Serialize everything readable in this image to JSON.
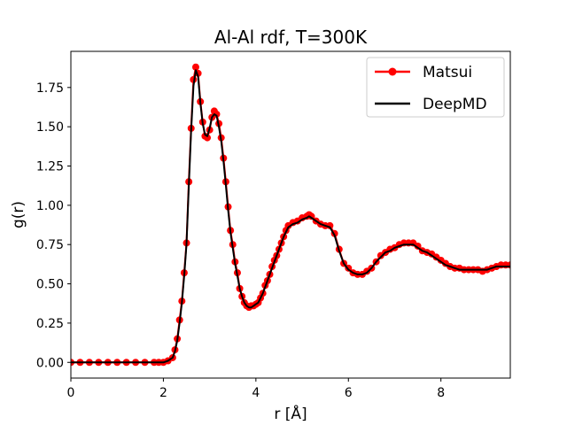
{
  "chart_data": {
    "type": "line",
    "title": "Al-Al rdf, T=300K",
    "xlabel": "r [Å]",
    "ylabel": "g(r)",
    "xlim": [
      0,
      9.5
    ],
    "ylim": [
      -0.1,
      1.98
    ],
    "xticks": [
      0,
      2,
      4,
      6,
      8
    ],
    "xtick_labels": [
      "0",
      "2",
      "4",
      "6",
      "8"
    ],
    "yticks": [
      0.0,
      0.25,
      0.5,
      0.75,
      1.0,
      1.25,
      1.5,
      1.75
    ],
    "ytick_labels": [
      "0.00",
      "0.25",
      "0.50",
      "0.75",
      "1.00",
      "1.25",
      "1.50",
      "1.75"
    ],
    "grid": false,
    "legend_position": "top-right",
    "curve_x": [
      0,
      0.2,
      0.4,
      0.6,
      0.8,
      1.0,
      1.2,
      1.4,
      1.6,
      1.8,
      1.9,
      2.0,
      2.1,
      2.2,
      2.25,
      2.3,
      2.35,
      2.4,
      2.45,
      2.5,
      2.55,
      2.6,
      2.65,
      2.7,
      2.75,
      2.8,
      2.85,
      2.9,
      2.95,
      3.0,
      3.05,
      3.1,
      3.15,
      3.2,
      3.25,
      3.3,
      3.35,
      3.4,
      3.45,
      3.5,
      3.55,
      3.6,
      3.65,
      3.7,
      3.75,
      3.8,
      3.85,
      3.9,
      3.95,
      4.0,
      4.05,
      4.1,
      4.15,
      4.2,
      4.25,
      4.3,
      4.35,
      4.4,
      4.45,
      4.5,
      4.55,
      4.6,
      4.65,
      4.7,
      4.8,
      4.9,
      5.0,
      5.1,
      5.15,
      5.2,
      5.3,
      5.4,
      5.5,
      5.6,
      5.7,
      5.8,
      5.9,
      6.0,
      6.1,
      6.2,
      6.3,
      6.4,
      6.5,
      6.6,
      6.7,
      6.8,
      6.9,
      7.0,
      7.1,
      7.2,
      7.3,
      7.4,
      7.5,
      7.6,
      7.7,
      7.8,
      7.9,
      8.0,
      8.1,
      8.2,
      8.3,
      8.4,
      8.5,
      8.6,
      8.7,
      8.8,
      8.9,
      9.0,
      9.1,
      9.2,
      9.3,
      9.4,
      9.5
    ],
    "series": [
      {
        "name": "Matsui",
        "color": "#ff0000",
        "values": [
          0.0,
          0.0,
          0.0,
          0.0,
          0.0,
          0.0,
          0.0,
          0.0,
          0.0,
          0.0,
          0.0,
          0.0,
          0.01,
          0.03,
          0.08,
          0.15,
          0.27,
          0.39,
          0.57,
          0.76,
          1.15,
          1.49,
          1.8,
          1.88,
          1.84,
          1.66,
          1.53,
          1.44,
          1.43,
          1.48,
          1.56,
          1.6,
          1.58,
          1.52,
          1.43,
          1.3,
          1.15,
          0.99,
          0.84,
          0.75,
          0.64,
          0.57,
          0.47,
          0.42,
          0.38,
          0.36,
          0.35,
          0.36,
          0.36,
          0.37,
          0.38,
          0.41,
          0.44,
          0.49,
          0.52,
          0.56,
          0.61,
          0.65,
          0.68,
          0.72,
          0.76,
          0.8,
          0.84,
          0.87,
          0.89,
          0.9,
          0.92,
          0.93,
          0.94,
          0.93,
          0.9,
          0.88,
          0.87,
          0.87,
          0.82,
          0.72,
          0.63,
          0.6,
          0.57,
          0.56,
          0.56,
          0.58,
          0.6,
          0.64,
          0.68,
          0.7,
          0.72,
          0.73,
          0.75,
          0.76,
          0.76,
          0.76,
          0.74,
          0.71,
          0.7,
          0.69,
          0.67,
          0.65,
          0.63,
          0.61,
          0.6,
          0.6,
          0.59,
          0.59,
          0.59,
          0.59,
          0.58,
          0.59,
          0.6,
          0.61,
          0.62,
          0.62,
          0.62
        ]
      },
      {
        "name": "DeepMD",
        "color": "#000000",
        "values": [
          0.0,
          0.0,
          0.0,
          0.0,
          0.0,
          0.0,
          0.0,
          0.0,
          0.0,
          0.0,
          0.0,
          0.0,
          0.01,
          0.03,
          0.07,
          0.14,
          0.25,
          0.38,
          0.55,
          0.75,
          1.12,
          1.47,
          1.76,
          1.86,
          1.82,
          1.65,
          1.52,
          1.45,
          1.44,
          1.49,
          1.56,
          1.58,
          1.57,
          1.5,
          1.41,
          1.28,
          1.13,
          0.97,
          0.83,
          0.73,
          0.63,
          0.55,
          0.47,
          0.42,
          0.38,
          0.36,
          0.35,
          0.35,
          0.36,
          0.37,
          0.38,
          0.41,
          0.44,
          0.48,
          0.52,
          0.56,
          0.6,
          0.64,
          0.68,
          0.72,
          0.76,
          0.8,
          0.83,
          0.86,
          0.88,
          0.89,
          0.91,
          0.92,
          0.93,
          0.92,
          0.9,
          0.88,
          0.87,
          0.86,
          0.81,
          0.71,
          0.63,
          0.59,
          0.57,
          0.56,
          0.56,
          0.57,
          0.6,
          0.64,
          0.67,
          0.7,
          0.71,
          0.73,
          0.74,
          0.75,
          0.75,
          0.75,
          0.73,
          0.71,
          0.7,
          0.68,
          0.66,
          0.64,
          0.62,
          0.61,
          0.6,
          0.59,
          0.59,
          0.59,
          0.59,
          0.59,
          0.59,
          0.59,
          0.6,
          0.61,
          0.61,
          0.61,
          0.61
        ]
      }
    ]
  }
}
